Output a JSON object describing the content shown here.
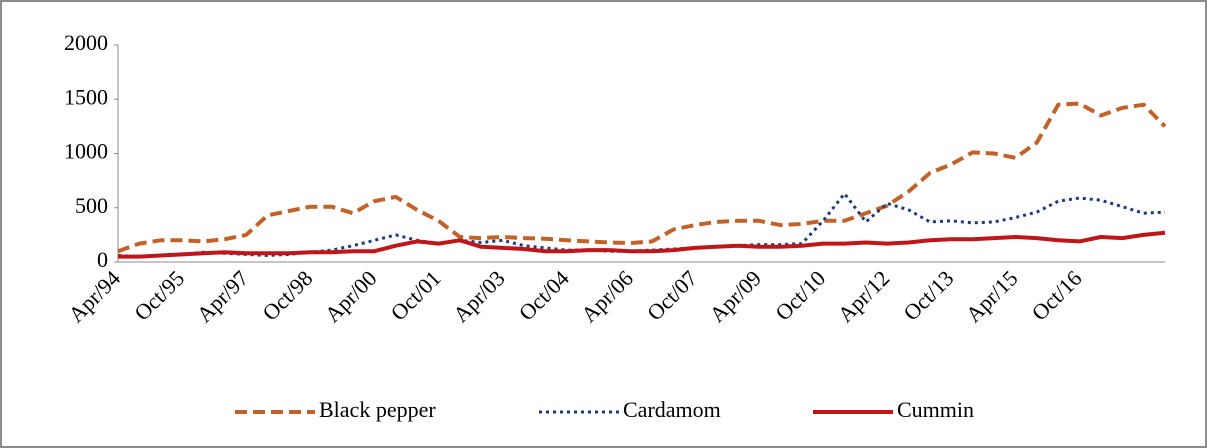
{
  "chart_data": {
    "type": "line",
    "categories": [
      "Apr/94",
      null,
      null,
      "Oct/95",
      null,
      null,
      "Apr/97",
      null,
      null,
      "Oct/98",
      null,
      null,
      "Apr/00",
      null,
      null,
      "Oct/01",
      null,
      null,
      "Apr/03",
      null,
      null,
      "Oct/04",
      null,
      null,
      "Apr/06",
      null,
      null,
      "Oct/07",
      null,
      null,
      "Apr/09",
      null,
      null,
      "Oct/10",
      null,
      null,
      "Apr/12",
      null,
      null,
      "Oct/13",
      null,
      null,
      "Apr/15",
      null,
      null,
      "Oct/16",
      null,
      null,
      null,
      null
    ],
    "series": [
      {
        "name": "Black pepper",
        "color": "#c0622a",
        "dash": "dashed",
        "values": [
          100,
          170,
          200,
          200,
          190,
          210,
          250,
          430,
          470,
          510,
          510,
          450,
          560,
          600,
          480,
          380,
          230,
          220,
          230,
          220,
          215,
          200,
          190,
          180,
          175,
          190,
          300,
          340,
          370,
          380,
          380,
          340,
          350,
          380,
          380,
          450,
          520,
          650,
          820,
          900,
          1010,
          1000,
          960,
          1100,
          1450,
          1460,
          1350,
          1420,
          1450,
          1250
        ]
      },
      {
        "name": "Cardamom",
        "color": "#1f3a7a",
        "dash": "dotted",
        "values": [
          60,
          50,
          60,
          70,
          90,
          80,
          70,
          60,
          70,
          90,
          110,
          150,
          200,
          250,
          200,
          170,
          200,
          180,
          200,
          150,
          130,
          110,
          110,
          100,
          100,
          110,
          120,
          130,
          140,
          150,
          160,
          160,
          170,
          380,
          630,
          370,
          540,
          480,
          370,
          380,
          360,
          370,
          410,
          460,
          560,
          590,
          570,
          510,
          450,
          460
        ]
      },
      {
        "name": "Cummin",
        "color": "#c0161a",
        "dash": "solid",
        "values": [
          50,
          50,
          60,
          70,
          80,
          90,
          80,
          80,
          80,
          90,
          90,
          100,
          100,
          150,
          190,
          170,
          200,
          140,
          130,
          120,
          100,
          100,
          110,
          110,
          100,
          100,
          110,
          130,
          140,
          150,
          140,
          140,
          150,
          170,
          170,
          180,
          170,
          180,
          200,
          210,
          210,
          220,
          230,
          220,
          200,
          190,
          230,
          220,
          250,
          270
        ]
      }
    ],
    "ylim": [
      0,
      2000
    ],
    "yticks": [
      0,
      500,
      1000,
      1500,
      2000
    ],
    "grid": false,
    "legend": "bottom"
  }
}
